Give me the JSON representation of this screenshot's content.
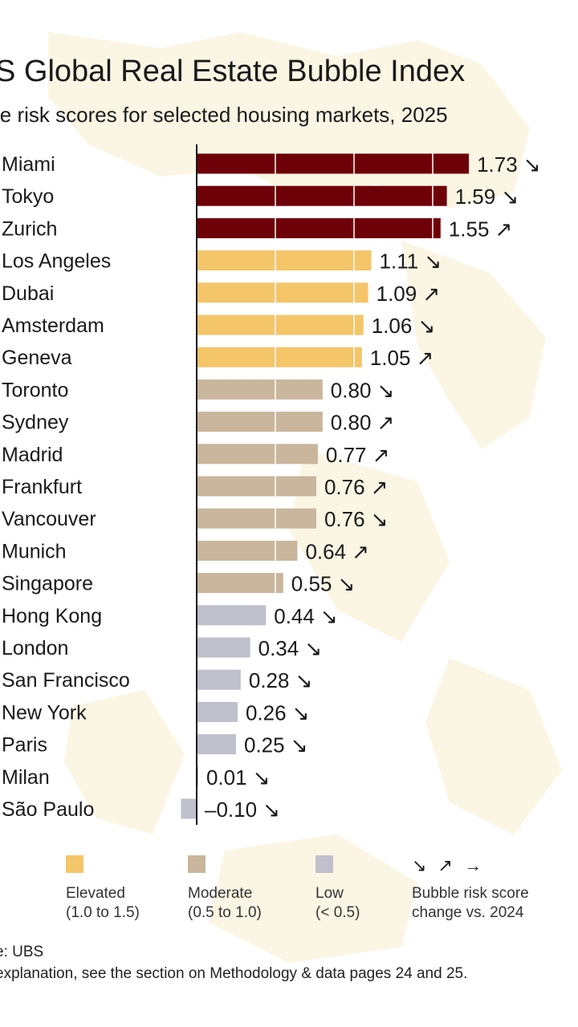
{
  "title": "S Global Real Estate Bubble Index",
  "subtitle": "le risk scores for selected housing markets, 2025",
  "colors": {
    "bubble": "#6e0008",
    "elevated": "#f5c56a",
    "moderate": "#c9b69c",
    "low": "#bfc0cc"
  },
  "chart_data": {
    "type": "bar",
    "orientation": "horizontal",
    "categories": [
      "Miami",
      "Tokyo",
      "Zurich",
      "Los Angeles",
      "Dubai",
      "Amsterdam",
      "Geneva",
      "Toronto",
      "Sydney",
      "Madrid",
      "Frankfurt",
      "Vancouver",
      "Munich",
      "Singapore",
      "Hong Kong",
      "London",
      "San Francisco",
      "New York",
      "Paris",
      "Milan",
      "São Paulo"
    ],
    "values": [
      1.73,
      1.59,
      1.55,
      1.11,
      1.09,
      1.06,
      1.05,
      0.8,
      0.8,
      0.77,
      0.76,
      0.76,
      0.64,
      0.55,
      0.44,
      0.34,
      0.28,
      0.26,
      0.25,
      0.01,
      -0.1
    ],
    "value_labels": [
      "1.73",
      "1.59",
      "1.55",
      "1.11",
      "1.09",
      "1.06",
      "1.05",
      "0.80",
      "0.80",
      "0.77",
      "0.76",
      "0.76",
      "0.64",
      "0.55",
      "0.44",
      "0.34",
      "0.28",
      "0.26",
      "0.25",
      "0.01",
      "–0.10"
    ],
    "change": [
      "down",
      "down",
      "up",
      "down",
      "up",
      "down",
      "up",
      "down",
      "up",
      "up",
      "up",
      "down",
      "up",
      "down",
      "down",
      "down",
      "down",
      "down",
      "down",
      "down",
      "down"
    ],
    "risk_class": [
      "bubble",
      "bubble",
      "bubble",
      "elevated",
      "elevated",
      "elevated",
      "elevated",
      "moderate",
      "moderate",
      "moderate",
      "moderate",
      "moderate",
      "moderate",
      "moderate",
      "low",
      "low",
      "low",
      "low",
      "low",
      "low",
      "low"
    ],
    "gridlines_at": [
      0.5,
      1.0,
      1.5
    ],
    "xlim": [
      -0.1,
      1.8
    ]
  },
  "legend": {
    "elevated": "Elevated\n(1.0 to 1.5)",
    "moderate": "Moderate\n(0.5 to 1.0)",
    "low": "Low\n(< 0.5)",
    "arrows": "↘ ↗ →",
    "change": "Bubble risk score\nchange vs. 2024"
  },
  "footer": {
    "source": "e: UBS",
    "note": "explanation, see the section on Methodology & data pages 24 and 25."
  }
}
